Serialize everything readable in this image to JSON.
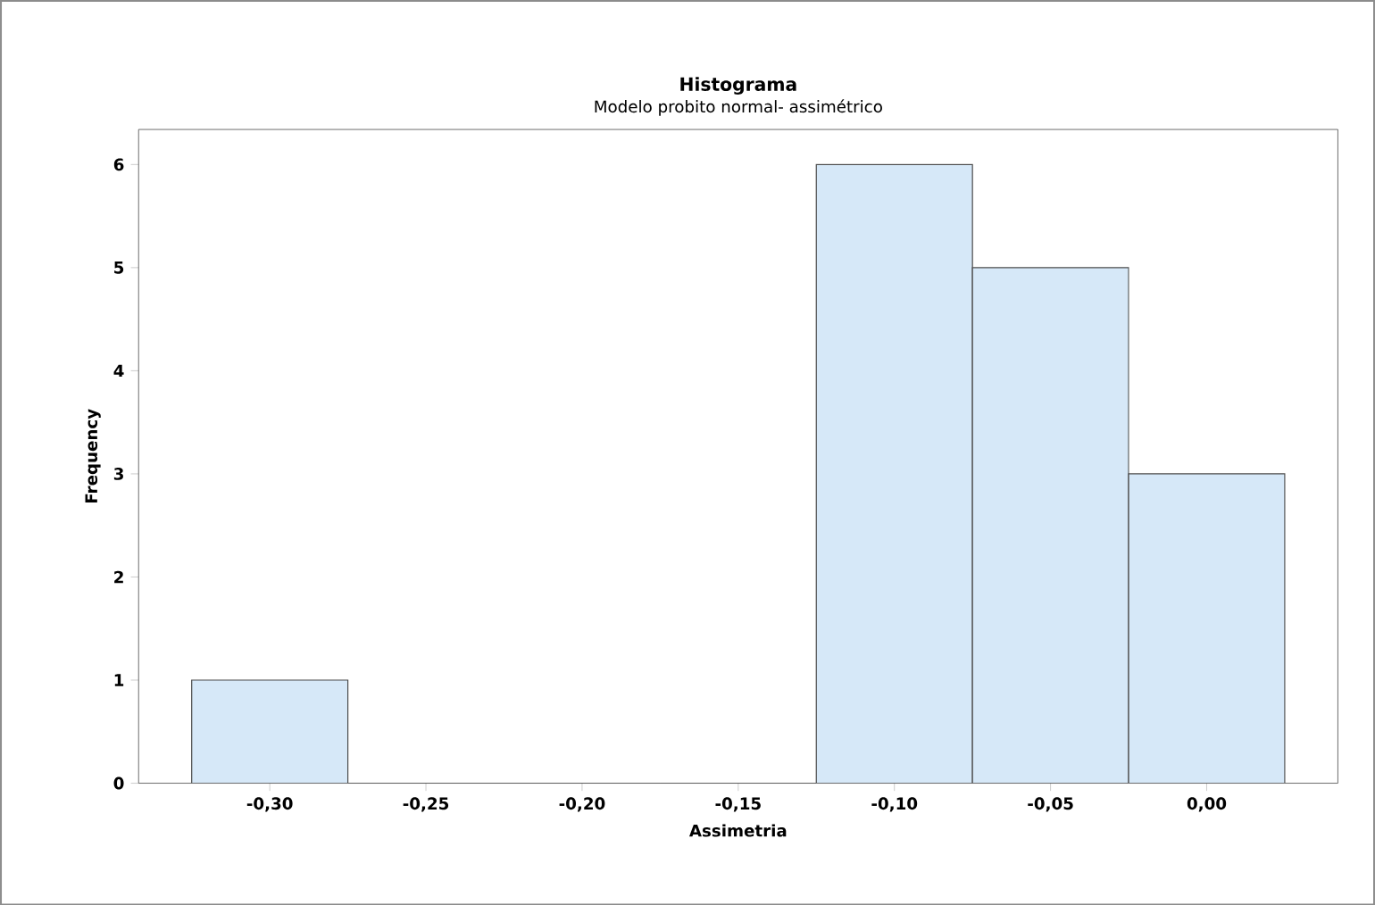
{
  "chart_data": {
    "type": "histogram",
    "title": "Histograma",
    "subtitle": "Modelo probito normal- assimétrico",
    "xlabel": "Assimetria",
    "ylabel": "Frequency",
    "bins": [
      -0.325,
      -0.275,
      -0.225,
      -0.175,
      -0.125,
      -0.075,
      -0.025,
      0.025
    ],
    "values": [
      1,
      0,
      0,
      0,
      6,
      5,
      3
    ],
    "color": "#d6e8f8",
    "xlim": [
      -0.342,
      0.042
    ],
    "ylim": [
      0,
      6.34
    ],
    "xticks": [
      {
        "value": -0.3,
        "label": "-0,30"
      },
      {
        "value": -0.25,
        "label": "-0,25"
      },
      {
        "value": -0.2,
        "label": "-0,20"
      },
      {
        "value": -0.15,
        "label": "-0,15"
      },
      {
        "value": -0.1,
        "label": "-0,10"
      },
      {
        "value": -0.05,
        "label": "-0,05"
      },
      {
        "value": 0.0,
        "label": "0,00"
      }
    ],
    "yticks": [
      0,
      1,
      2,
      3,
      4,
      5,
      6
    ]
  }
}
